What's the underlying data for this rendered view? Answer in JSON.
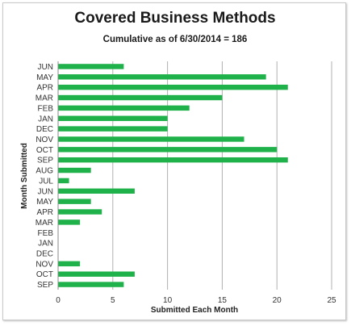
{
  "chart_data": {
    "type": "bar",
    "orientation": "horizontal",
    "title": "Covered Business Methods",
    "subtitle": "Cumulative as of 6/30/2014 = 186",
    "xlabel": "Submitted Each Month",
    "ylabel": "Month Submitted",
    "xlim": [
      0,
      25
    ],
    "xticks": [
      "0",
      "5",
      "10",
      "15",
      "20",
      "25"
    ],
    "grid": "vertical",
    "legend": "none",
    "bar_color": "#1fb14a",
    "grid_color": "#b0b0b0",
    "categories": [
      "JUN",
      "MAY",
      "APR",
      "MAR",
      "FEB",
      "JAN",
      "DEC",
      "NOV",
      "OCT",
      "SEP",
      "AUG",
      "JUL",
      "JUN",
      "MAY",
      "APR",
      "MAR",
      "FEB",
      "JAN",
      "DEC",
      "NOV",
      "OCT",
      "SEP"
    ],
    "values": [
      6,
      19,
      21,
      15,
      12,
      10,
      10,
      17,
      20,
      21,
      3,
      1,
      7,
      3,
      4,
      2,
      0,
      0,
      0,
      2,
      7,
      6
    ]
  }
}
